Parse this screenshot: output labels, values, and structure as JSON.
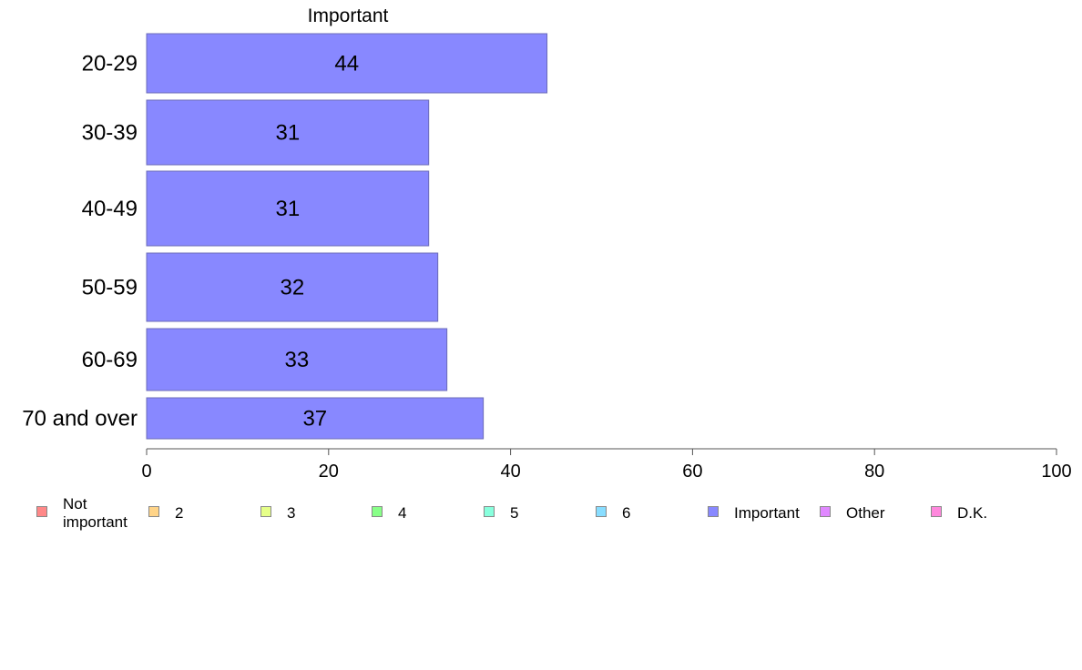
{
  "chart_data": {
    "type": "bar",
    "orientation": "horizontal",
    "title": "Important",
    "categories": [
      "20-29",
      "30-39",
      "40-49",
      "50-59",
      "60-69",
      "70 and over"
    ],
    "series": [
      {
        "name": "Important",
        "values": [
          44,
          31,
          31,
          32,
          33,
          37
        ]
      }
    ],
    "data_labels": [
      "44",
      "31",
      "31",
      "32",
      "33",
      "37"
    ],
    "xlim": [
      0,
      100
    ],
    "x_ticks": [
      0,
      20,
      40,
      60,
      80,
      100
    ],
    "x_tick_labels": [
      "0",
      "20",
      "40",
      "60",
      "80",
      "100"
    ],
    "xlabel": "",
    "ylabel": "",
    "grid": false,
    "bar_color": "#8888ff",
    "bar_border_color": "#6b6bb8",
    "legend_placement": "bottom",
    "legend": [
      {
        "label": "Not important",
        "color": "#ff8888"
      },
      {
        "label": "2",
        "color": "#ffd488"
      },
      {
        "label": "3",
        "color": "#e6ff88"
      },
      {
        "label": "4",
        "color": "#88ff88"
      },
      {
        "label": "5",
        "color": "#88ffdd"
      },
      {
        "label": "6",
        "color": "#88ddff"
      },
      {
        "label": "Important",
        "color": "#8888ff"
      },
      {
        "label": "Other",
        "color": "#e088ff"
      },
      {
        "label": "D.K.",
        "color": "#ff88dd"
      }
    ]
  }
}
